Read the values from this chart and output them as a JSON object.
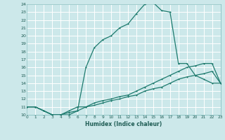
{
  "xlabel": "Humidex (Indice chaleur)",
  "bg_color": "#cce8ea",
  "grid_color": "#ffffff",
  "line_color": "#1e7b6e",
  "xlim": [
    0,
    23
  ],
  "ylim": [
    10,
    24
  ],
  "xticks": [
    0,
    1,
    2,
    3,
    4,
    5,
    6,
    7,
    8,
    9,
    10,
    11,
    12,
    13,
    14,
    15,
    16,
    17,
    18,
    19,
    20,
    21,
    22,
    23
  ],
  "yticks": [
    10,
    11,
    12,
    13,
    14,
    15,
    16,
    17,
    18,
    19,
    20,
    21,
    22,
    23,
    24
  ],
  "line1_x": [
    0,
    1,
    2,
    3,
    4,
    5,
    6,
    7,
    8,
    9,
    10,
    11,
    12,
    13,
    14,
    15,
    16,
    17,
    18,
    19,
    20,
    21,
    22,
    23
  ],
  "line1_y": [
    11.0,
    11.0,
    10.5,
    10.0,
    10.0,
    10.0,
    10.5,
    16.0,
    18.5,
    19.5,
    20.0,
    21.0,
    21.5,
    22.8,
    24.0,
    24.2,
    23.2,
    23.0,
    16.5,
    16.5,
    15.0,
    14.5,
    14.0,
    14.0
  ],
  "line2_x": [
    0,
    1,
    2,
    3,
    4,
    5,
    6,
    7,
    8,
    9,
    10,
    11,
    12,
    13,
    14,
    15,
    16,
    17,
    18,
    19,
    20,
    21,
    22,
    23
  ],
  "line2_y": [
    11.0,
    11.0,
    10.5,
    10.0,
    10.0,
    10.5,
    11.0,
    11.0,
    11.5,
    11.8,
    12.0,
    12.3,
    12.5,
    13.0,
    13.5,
    14.0,
    14.5,
    15.0,
    15.5,
    16.0,
    16.2,
    16.5,
    16.5,
    14.0
  ],
  "line3_x": [
    0,
    1,
    2,
    3,
    4,
    5,
    6,
    7,
    8,
    9,
    10,
    11,
    12,
    13,
    14,
    15,
    16,
    17,
    18,
    19,
    20,
    21,
    22,
    23
  ],
  "line3_y": [
    11.0,
    11.0,
    10.5,
    10.0,
    10.0,
    10.3,
    10.5,
    11.0,
    11.2,
    11.5,
    11.8,
    12.0,
    12.3,
    12.5,
    13.0,
    13.3,
    13.5,
    14.0,
    14.5,
    14.8,
    15.0,
    15.2,
    15.5,
    14.0
  ]
}
